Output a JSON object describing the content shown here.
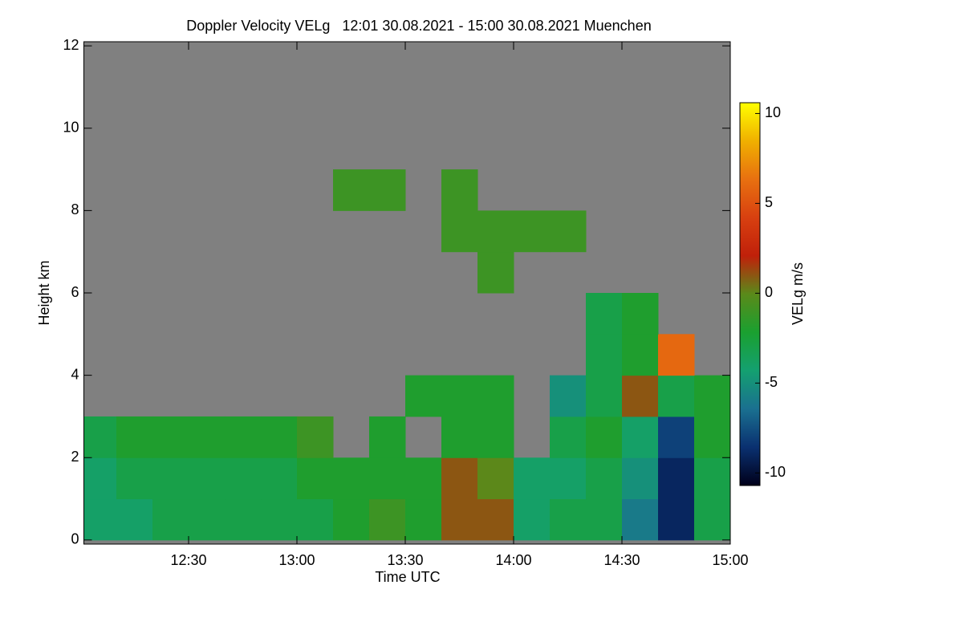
{
  "chart_data": {
    "type": "heatmap",
    "title": "Doppler Velocity VELg   12:01 30.08.2021 - 15:00 30.08.2021 Muenchen",
    "x_label": "Time UTC",
    "y_label": "Height km",
    "colorbar_label": "VELg m/s",
    "xlim": [
      1,
      180
    ],
    "xticks": [
      {
        "value": 30,
        "label": "12:30"
      },
      {
        "value": 60,
        "label": "13:00"
      },
      {
        "value": 90,
        "label": "13:30"
      },
      {
        "value": 120,
        "label": "14:00"
      },
      {
        "value": 150,
        "label": "14:30"
      },
      {
        "value": 180,
        "label": "15:00"
      }
    ],
    "ylim": [
      -0.1,
      12.1
    ],
    "yticks": [
      0,
      2,
      4,
      6,
      8,
      10,
      12
    ],
    "clim": [
      -10.7,
      10.6
    ],
    "cticks": [
      -10,
      -5,
      0,
      5,
      10
    ],
    "colormap": [
      "#00001a",
      "#0a3070",
      "#1a7090",
      "#14a070",
      "#1aa030",
      "#5a8a1a",
      "#c0200a",
      "#d84010",
      "#e87010",
      "#f0b000",
      "#ffff00"
    ],
    "missing_color": "#808080",
    "x": [
      1,
      10,
      20,
      30,
      40,
      50,
      60,
      70,
      80,
      90,
      100,
      110,
      120,
      130,
      140,
      150,
      160,
      170,
      180
    ],
    "y": [
      0,
      1,
      2,
      3,
      4,
      5,
      6,
      7,
      8,
      9,
      10,
      11,
      12
    ],
    "values": [
      [
        -4,
        -4,
        -3,
        -3,
        -3,
        -3,
        -3,
        -2,
        -1,
        -2,
        1,
        1,
        -4,
        -3,
        -3,
        -6,
        -9,
        -3
      ],
      [
        -4,
        -3,
        -3,
        -3,
        -3,
        -3,
        -2,
        -2,
        -2,
        -2,
        1,
        0,
        -4,
        -4,
        -3,
        -5,
        -9,
        -3
      ],
      [
        -3,
        -2,
        -2,
        -2,
        -2,
        -2,
        -1,
        null,
        -2,
        null,
        -2,
        -2,
        null,
        -3,
        -2,
        -4,
        -8,
        -2
      ],
      [
        null,
        null,
        null,
        null,
        null,
        null,
        null,
        null,
        null,
        -2,
        -2,
        -2,
        null,
        -5,
        -3,
        1,
        -3,
        -2
      ],
      [
        null,
        null,
        null,
        null,
        null,
        null,
        null,
        null,
        null,
        null,
        null,
        null,
        null,
        null,
        -3,
        -2,
        6,
        null
      ],
      [
        null,
        null,
        null,
        null,
        null,
        null,
        null,
        null,
        null,
        null,
        null,
        null,
        null,
        null,
        -3,
        -2,
        null,
        null
      ],
      [
        null,
        null,
        null,
        null,
        null,
        null,
        null,
        null,
        null,
        null,
        null,
        -1,
        null,
        null,
        null,
        null,
        null,
        null
      ],
      [
        null,
        null,
        null,
        null,
        null,
        null,
        null,
        null,
        null,
        null,
        -1,
        -1,
        -1,
        -1,
        null,
        null,
        null,
        null
      ],
      [
        null,
        null,
        null,
        null,
        null,
        null,
        null,
        -1,
        -1,
        null,
        -1,
        null,
        null,
        null,
        null,
        null,
        null,
        null
      ],
      [
        null,
        null,
        null,
        null,
        null,
        null,
        null,
        null,
        null,
        null,
        null,
        null,
        null,
        null,
        null,
        null,
        null,
        null
      ],
      [
        null,
        null,
        null,
        null,
        null,
        null,
        null,
        null,
        null,
        null,
        null,
        null,
        null,
        null,
        null,
        null,
        null,
        null
      ],
      [
        null,
        null,
        null,
        null,
        null,
        null,
        null,
        null,
        null,
        null,
        null,
        null,
        null,
        null,
        null,
        null,
        null,
        null
      ]
    ]
  }
}
